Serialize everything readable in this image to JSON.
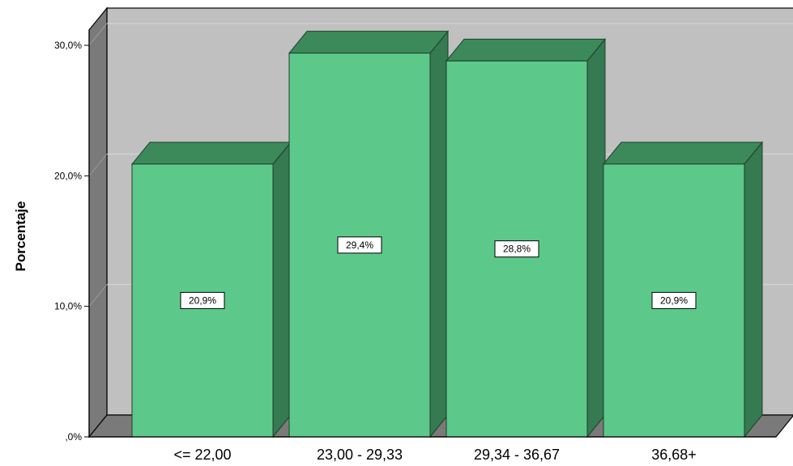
{
  "chart_data": {
    "type": "bar",
    "categories": [
      "<= 22,00",
      "23,00 - 29,33",
      "29,34 - 36,67",
      "36,68+"
    ],
    "values": [
      20.9,
      29.4,
      28.8,
      20.9
    ],
    "data_labels": [
      "20,9%",
      "29,4%",
      "28,8%",
      "20,9%"
    ],
    "title": "",
    "xlabel": "",
    "ylabel": "Porcentaje",
    "ylim": [
      0,
      30
    ],
    "yticks": [
      0,
      10,
      20,
      30
    ],
    "ytick_labels": [
      ",0%",
      "10,0%",
      "20,0%",
      "30,0%"
    ],
    "grid": true,
    "style": "3d",
    "colors": {
      "bar_front": "#5cc98b",
      "bar_top": "#3c8a5a",
      "bar_side": "#357a50",
      "back_wall": "#c0c0c0",
      "side_wall": "#7a7a7a",
      "floor": "#7a7a7a",
      "gridline": "#d8d8d8"
    }
  }
}
